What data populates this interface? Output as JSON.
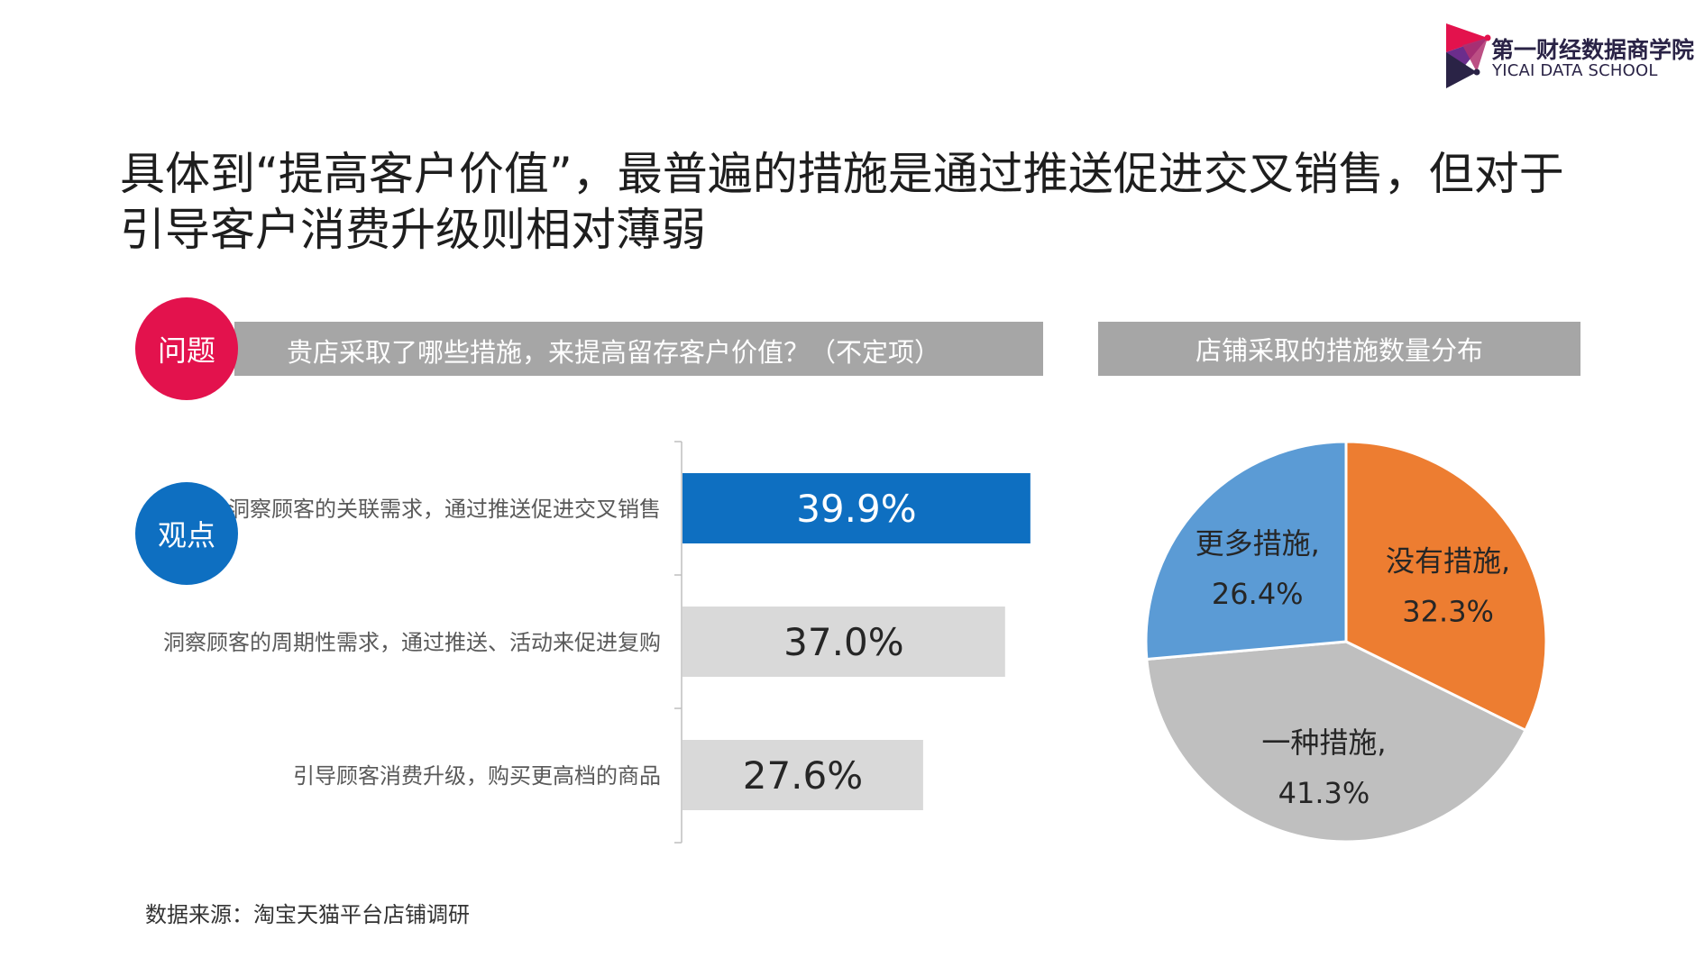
{
  "header": {
    "logo_cn": "第一财经数据商学院",
    "logo_en": "YICAI DATA SCHOOL"
  },
  "headline": {
    "line1": "具体到“提高客户价值”，最普遍的措施是通过推送促进交叉销售，但对于",
    "line2": "引导客户消费升级则相对薄弱"
  },
  "question": {
    "badge": "问题",
    "text": "贵店采取了哪些措施，来提高留存客户价值？（不定项）"
  },
  "viewpoint": {
    "badge": "观点"
  },
  "pie_title": "店铺采取的措施数量分布",
  "source": "数据来源：淘宝天猫平台店铺调研",
  "colors": {
    "highlight": "#0e6fc1",
    "bar_gray": "#d9d9d9",
    "question_red": "#e3124d",
    "band_gray": "#a6a6a6",
    "pie_orange": "#ed7d31",
    "pie_gray": "#bfbfbf",
    "pie_blue": "#5b9bd5"
  },
  "chart_data": [
    {
      "type": "bar",
      "orientation": "horizontal",
      "categories": [
        "洞察顾客的关联需求，通过推送促进交叉销售",
        "洞察顾客的周期性需求，通过推送、活动来促进复购",
        "引导顾客消费升级，购买更高档的商品"
      ],
      "values": [
        39.9,
        37.0,
        27.6
      ],
      "value_labels": [
        "39.9%",
        "37.0%",
        "27.6%"
      ],
      "highlight_index": 0
    },
    {
      "type": "pie",
      "title": "店铺采取的措施数量分布",
      "slices": [
        {
          "name": "没有措施",
          "label": "没有措施,",
          "value": 32.3,
          "value_label": "32.3%",
          "color": "#ed7d31"
        },
        {
          "name": "一种措施",
          "label": "一种措施,",
          "value": 41.3,
          "value_label": "41.3%",
          "color": "#bfbfbf"
        },
        {
          "name": "更多措施",
          "label": "更多措施,",
          "value": 26.4,
          "value_label": "26.4%",
          "color": "#5b9bd5"
        }
      ]
    }
  ]
}
